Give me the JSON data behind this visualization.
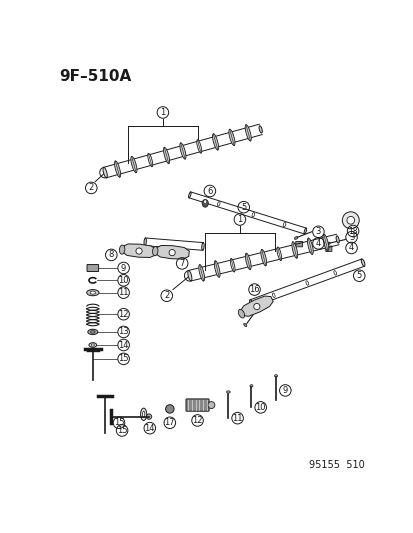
{
  "title": "9F–510A",
  "footer": "95155  510",
  "bg_color": "#ffffff",
  "line_color": "#1a1a1a",
  "title_fontsize": 11,
  "footer_fontsize": 7,
  "figsize": [
    4.14,
    5.33
  ],
  "dpi": 100
}
